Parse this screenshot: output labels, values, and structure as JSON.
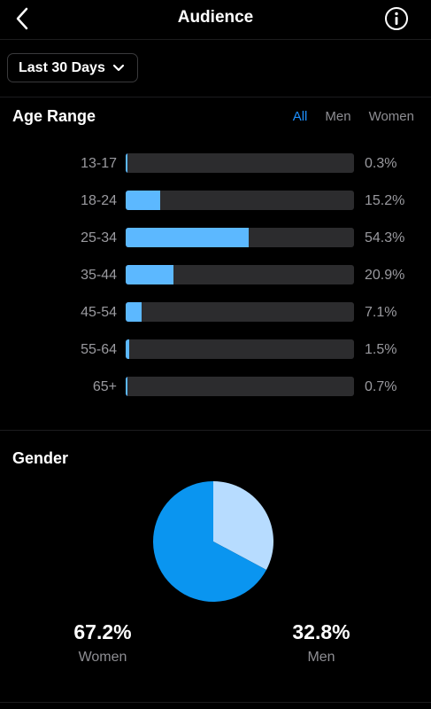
{
  "header": {
    "title": "Audience",
    "back_icon": "chevron-left-icon",
    "info_icon": "info-icon"
  },
  "range_selector": {
    "selected": "Last 30 Days",
    "icon": "chevron-down-icon"
  },
  "age_range": {
    "title": "Age Range",
    "filters": [
      {
        "label": "All",
        "active": true
      },
      {
        "label": "Men",
        "active": false
      },
      {
        "label": "Women",
        "active": false
      }
    ],
    "rows": [
      {
        "label": "13-17",
        "percent_text": "0.3%",
        "value": 0.3
      },
      {
        "label": "18-24",
        "percent_text": "15.2%",
        "value": 15.2
      },
      {
        "label": "25-34",
        "percent_text": "54.3%",
        "value": 54.3
      },
      {
        "label": "35-44",
        "percent_text": "20.9%",
        "value": 20.9
      },
      {
        "label": "45-54",
        "percent_text": "7.1%",
        "value": 7.1
      },
      {
        "label": "55-64",
        "percent_text": "1.5%",
        "value": 1.5
      },
      {
        "label": "65+",
        "percent_text": "0.7%",
        "value": 0.7
      }
    ],
    "bar_max": 54.3
  },
  "gender": {
    "title": "Gender",
    "women": {
      "value_text": "67.2%",
      "label": "Women",
      "value": 67.2,
      "color": "#0a95f0"
    },
    "men": {
      "value_text": "32.8%",
      "label": "Men",
      "value": 32.8,
      "color": "#b7dcff"
    }
  },
  "colors": {
    "accent": "#1e90ff",
    "bar_fill": "#5cb8ff",
    "bar_track": "#2c2c2e",
    "background": "#000000"
  }
}
